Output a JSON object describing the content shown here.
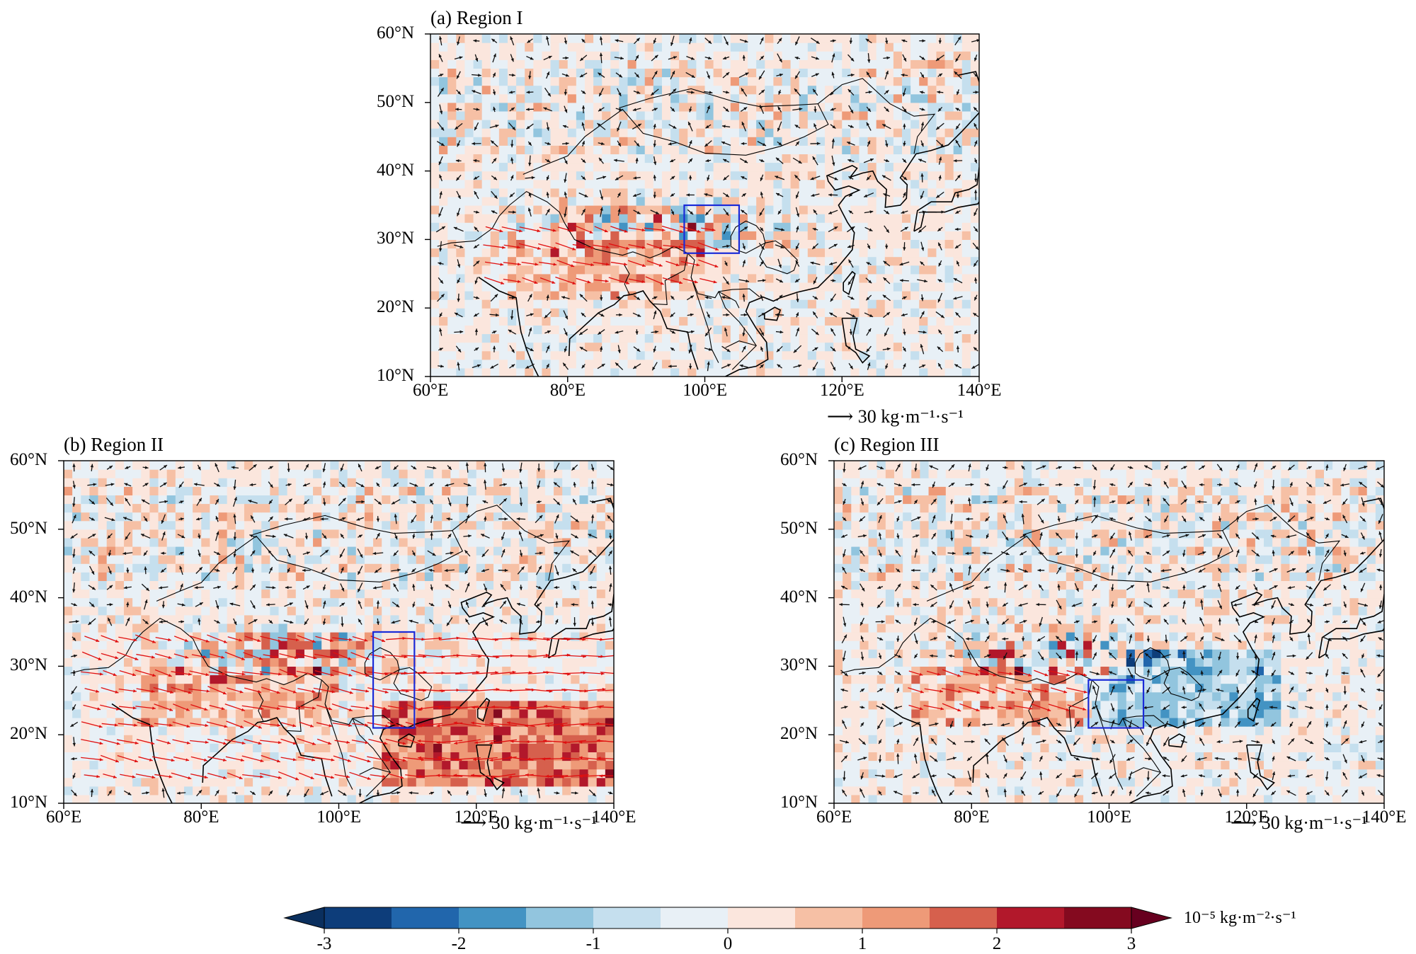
{
  "figure": {
    "panels": [
      {
        "id": "a",
        "title": "(a) Region I",
        "lon_range": [
          60,
          140
        ],
        "lat_range": [
          10,
          60
        ],
        "lon_ticks": [
          "60°E",
          "80°E",
          "100°E",
          "120°E",
          "140°E"
        ],
        "lat_ticks": [
          "10°N",
          "20°N",
          "30°N",
          "40°N",
          "50°N",
          "60°N"
        ],
        "box": {
          "lon": [
            97,
            105
          ],
          "lat": [
            28,
            35
          ]
        },
        "reference_vector": "30 kg·m⁻¹·s⁻¹",
        "red_vector_zone": {
          "lon": [
            68,
            102
          ],
          "lat": [
            22,
            32
          ]
        }
      },
      {
        "id": "b",
        "title": "(b) Region II",
        "lon_range": [
          60,
          140
        ],
        "lat_range": [
          10,
          60
        ],
        "lon_ticks": [
          "60°E",
          "80°E",
          "100°E",
          "120°E",
          "140°E"
        ],
        "lat_ticks": [
          "10°N",
          "20°N",
          "30°N",
          "40°N",
          "50°N",
          "60°N"
        ],
        "box": {
          "lon": [
            105,
            111
          ],
          "lat": [
            21,
            35
          ]
        },
        "reference_vector": "30 kg·m⁻¹·s⁻¹",
        "red_vector_zone": {
          "lon": [
            64,
            140
          ],
          "lat": [
            12,
            36
          ]
        }
      },
      {
        "id": "c",
        "title": "(c) Region III",
        "lon_range": [
          60,
          140
        ],
        "lat_range": [
          10,
          60
        ],
        "lon_ticks": [
          "60°E",
          "80°E",
          "100°E",
          "120°E",
          "140°E"
        ],
        "lat_ticks": [
          "10°N",
          "20°N",
          "30°N",
          "40°N",
          "50°N",
          "60°N"
        ],
        "box": {
          "lon": [
            97,
            105
          ],
          "lat": [
            21,
            28
          ]
        },
        "reference_vector": "30 kg·m⁻¹·s⁻¹",
        "red_vector_zone": {
          "lon": [
            70,
            96
          ],
          "lat": [
            22,
            30
          ]
        }
      }
    ],
    "colorbar": {
      "levels": [
        -3,
        -2.5,
        -2,
        -1.5,
        -1,
        -0.5,
        0,
        0.5,
        1,
        1.5,
        2,
        2.5,
        3
      ],
      "tick_labels": [
        "-3",
        "-2",
        "-1",
        "0",
        "1",
        "2",
        "3"
      ],
      "colors": [
        "#0d3d7a",
        "#2166ac",
        "#4393c3",
        "#92c5de",
        "#c5dfee",
        "#e8f0f6",
        "#fbe6dd",
        "#f6c0a5",
        "#ee9a78",
        "#d6604d",
        "#b2182b",
        "#840a1f"
      ],
      "under_color": "#0a2f5e",
      "over_color": "#67001f",
      "unit": "10⁻⁵ kg·m⁻²·s⁻¹"
    },
    "colors": {
      "box": "#1a2ad8",
      "vector_black": "#111111",
      "vector_red": "#e01010",
      "coastline": "#000000"
    }
  }
}
